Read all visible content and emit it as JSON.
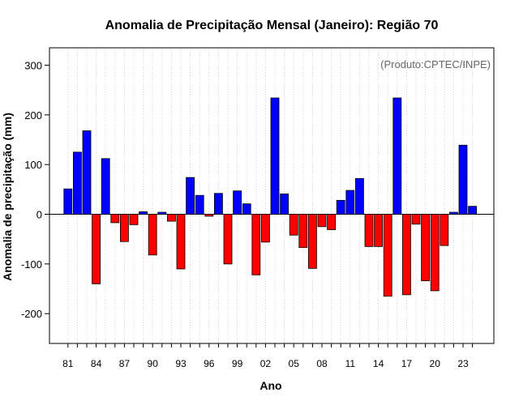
{
  "chart_data": {
    "type": "bar",
    "title": "Anomalia de Precipitação Mensal (Janeiro): Região 70",
    "xlabel": "Ano",
    "ylabel": "Anomalia de precipitação (mm)",
    "annotation": "(Produto:CPTEC/INPE)",
    "ylim": [
      -260,
      335
    ],
    "y_ticks": [
      -200,
      -100,
      0,
      100,
      200,
      300
    ],
    "y_tick_labels": [
      "-200",
      "-100",
      "0",
      "100",
      "200",
      "300"
    ],
    "x_tick_labels": [
      "81",
      "84",
      "87",
      "90",
      "93",
      "96",
      "99",
      "02",
      "05",
      "08",
      "11",
      "14",
      "17",
      "20",
      "23"
    ],
    "grid": "vertical dotted",
    "positive_color": "#0000ff",
    "negative_color": "#ff0000",
    "categories": [
      1981,
      1982,
      1983,
      1984,
      1985,
      1986,
      1987,
      1988,
      1989,
      1990,
      1991,
      1992,
      1993,
      1994,
      1995,
      1996,
      1997,
      1998,
      1999,
      2000,
      2001,
      2002,
      2003,
      2004,
      2005,
      2006,
      2007,
      2008,
      2009,
      2010,
      2011,
      2012,
      2013,
      2014,
      2015,
      2016,
      2017,
      2018,
      2019,
      2020,
      2021,
      2022,
      2023,
      2024
    ],
    "values": [
      51,
      125,
      168,
      -140,
      112,
      -17,
      -55,
      -21,
      5,
      -82,
      4,
      -14,
      -110,
      74,
      38,
      -4,
      42,
      -100,
      47,
      21,
      -122,
      -56,
      234,
      41,
      -42,
      -67,
      -109,
      -25,
      -31,
      28,
      48,
      72,
      -65,
      -65,
      -165,
      234,
      -162,
      -20,
      -134,
      -154,
      -63,
      4,
      139,
      16
    ]
  }
}
